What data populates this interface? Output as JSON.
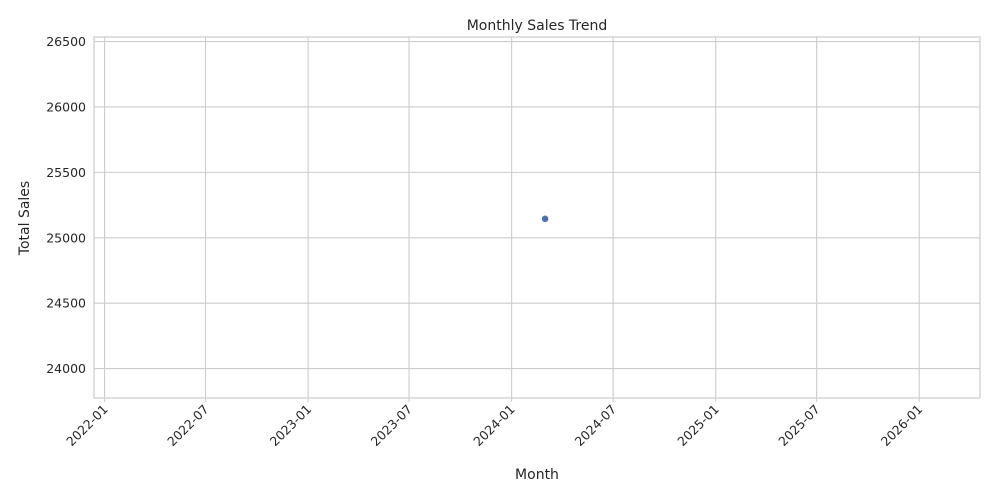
{
  "chart_data": {
    "type": "scatter",
    "title": "Monthly Sales Trend",
    "xlabel": "Month",
    "ylabel": "Total Sales",
    "x_tick_labels": [
      "2022-01",
      "2022-07",
      "2023-01",
      "2023-07",
      "2024-01",
      "2024-07",
      "2025-01",
      "2025-07",
      "2026-01"
    ],
    "x_ticks": [
      "2022-01-01",
      "2022-07-01",
      "2023-01-01",
      "2023-07-01",
      "2024-01-01",
      "2024-07-01",
      "2025-01-01",
      "2025-07-01",
      "2026-01-01"
    ],
    "xlim": [
      "2021-12-13",
      "2026-04-20"
    ],
    "y_tick_labels": [
      "24000",
      "24500",
      "25000",
      "25500",
      "26000",
      "26500"
    ],
    "y_ticks": [
      24000,
      24500,
      25000,
      25500,
      26000,
      26500
    ],
    "ylim": [
      23775,
      26535
    ],
    "points": [
      {
        "x": "2024-03-01",
        "y": 25145
      }
    ],
    "grid": true,
    "colors": {
      "point": "#4c72b0",
      "grid": "#cccccc",
      "spine": "#cccccc",
      "text": "#262626"
    }
  }
}
